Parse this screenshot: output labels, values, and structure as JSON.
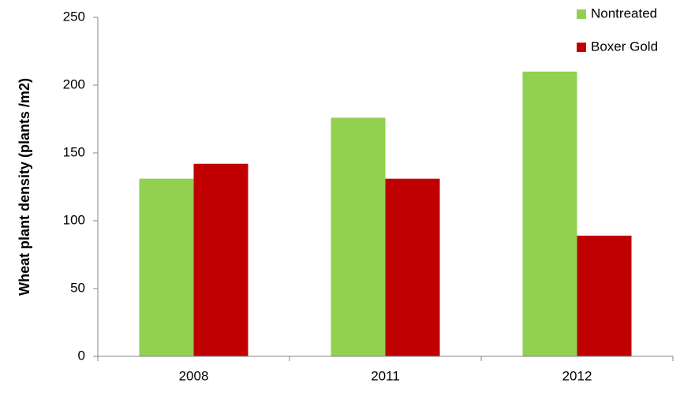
{
  "chart_data": {
    "type": "bar",
    "y_label": "Wheat plant density (plants /m2)",
    "categories": [
      "2008",
      "2011",
      "2012"
    ],
    "series": [
      {
        "name": "Nontreated",
        "color": "#92d050",
        "values": [
          131,
          176,
          210
        ]
      },
      {
        "name": "Boxer Gold",
        "color": "#c00000",
        "values": [
          142,
          131,
          89
        ]
      }
    ],
    "ylim": [
      0,
      250
    ],
    "yticks": [
      0,
      50,
      100,
      150,
      200,
      250
    ],
    "grid": false,
    "legend": "top-right"
  }
}
